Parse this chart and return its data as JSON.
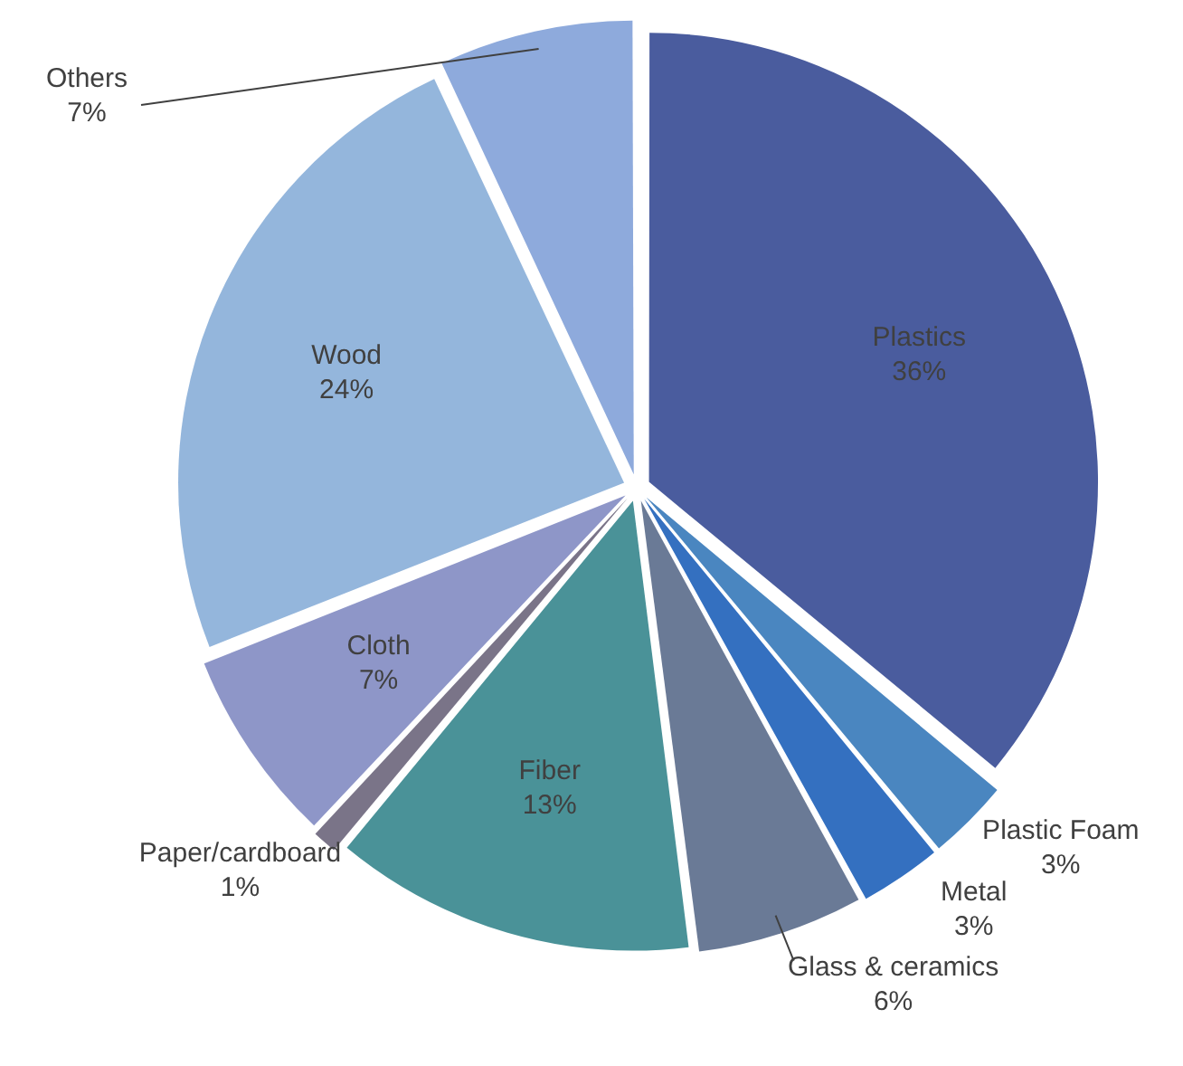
{
  "chart_data": {
    "type": "pie",
    "categories": [
      "Plastics",
      "Plastic Foam",
      "Metal",
      "Glass & ceramics",
      "Fiber",
      "Paper/cardboard",
      "Cloth",
      "Wood",
      "Others"
    ],
    "values": [
      36,
      3,
      3,
      6,
      13,
      1,
      7,
      24,
      7
    ],
    "value_labels": [
      "36%",
      "3%",
      "3%",
      "6%",
      "13%",
      "1%",
      "7%",
      "24%",
      "7%"
    ],
    "colors": [
      "#4a5c9e",
      "#4a86c0",
      "#3470c0",
      "#6a7a96",
      "#4a9298",
      "#7a7488",
      "#8e96c8",
      "#94b6dc",
      "#8eaadc"
    ],
    "legend": false
  }
}
